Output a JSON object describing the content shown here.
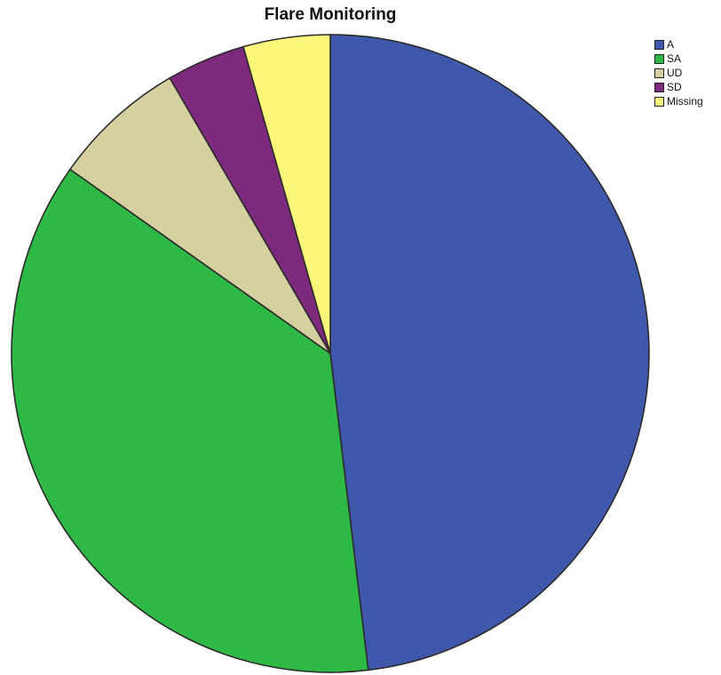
{
  "chart_data": {
    "type": "pie",
    "title": "Flare Monitoring",
    "categories": [
      "A",
      "SA",
      "UD",
      "SD",
      "Missing"
    ],
    "values": [
      48.1,
      36.7,
      6.8,
      4.0,
      4.4
    ],
    "colors": [
      "#3f58ab",
      "#2eb845",
      "#d6d0a1",
      "#7d2a7c",
      "#fcf77a"
    ],
    "start_angle_deg": 0,
    "direction": "clockwise",
    "legend": "top-right"
  }
}
